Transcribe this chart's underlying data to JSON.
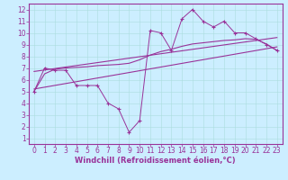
{
  "xlabel": "Windchill (Refroidissement éolien,°C)",
  "bg_color": "#cceeff",
  "line_color": "#993399",
  "xlim": [
    -0.5,
    23.5
  ],
  "ylim": [
    0.5,
    12.5
  ],
  "xticks": [
    0,
    1,
    2,
    3,
    4,
    5,
    6,
    7,
    8,
    9,
    10,
    11,
    12,
    13,
    14,
    15,
    16,
    17,
    18,
    19,
    20,
    21,
    22,
    23
  ],
  "yticks": [
    1,
    2,
    3,
    4,
    5,
    6,
    7,
    8,
    9,
    10,
    11,
    12
  ],
  "data_x": [
    0,
    1,
    2,
    3,
    4,
    5,
    6,
    7,
    8,
    9,
    10,
    11,
    12,
    13,
    14,
    15,
    16,
    17,
    18,
    19,
    20,
    21,
    22,
    23
  ],
  "data_y": [
    5.0,
    7.0,
    6.8,
    6.8,
    5.5,
    5.5,
    5.5,
    4.0,
    3.5,
    1.5,
    2.5,
    10.2,
    10.0,
    8.5,
    11.2,
    12.0,
    11.0,
    10.5,
    11.0,
    10.0,
    10.0,
    9.5,
    9.0,
    8.5
  ],
  "trend1_x": [
    0,
    23
  ],
  "trend1_y": [
    5.2,
    8.8
  ],
  "trend2_x": [
    0,
    23
  ],
  "trend2_y": [
    6.7,
    9.6
  ],
  "smooth_x": [
    0,
    1,
    2,
    3,
    4,
    5,
    6,
    7,
    8,
    9,
    10,
    11,
    12,
    13,
    14,
    15,
    16,
    17,
    18,
    19,
    20,
    21,
    22,
    23
  ],
  "smooth_y": [
    5.0,
    6.5,
    6.9,
    7.0,
    7.05,
    7.1,
    7.2,
    7.25,
    7.3,
    7.4,
    7.7,
    8.1,
    8.4,
    8.6,
    8.85,
    9.05,
    9.15,
    9.25,
    9.35,
    9.4,
    9.5,
    9.45,
    9.05,
    8.5
  ],
  "xlabel_fontsize": 6,
  "tick_fontsize": 5.5,
  "grid_color": "#aadddd",
  "spine_color": "#993399"
}
